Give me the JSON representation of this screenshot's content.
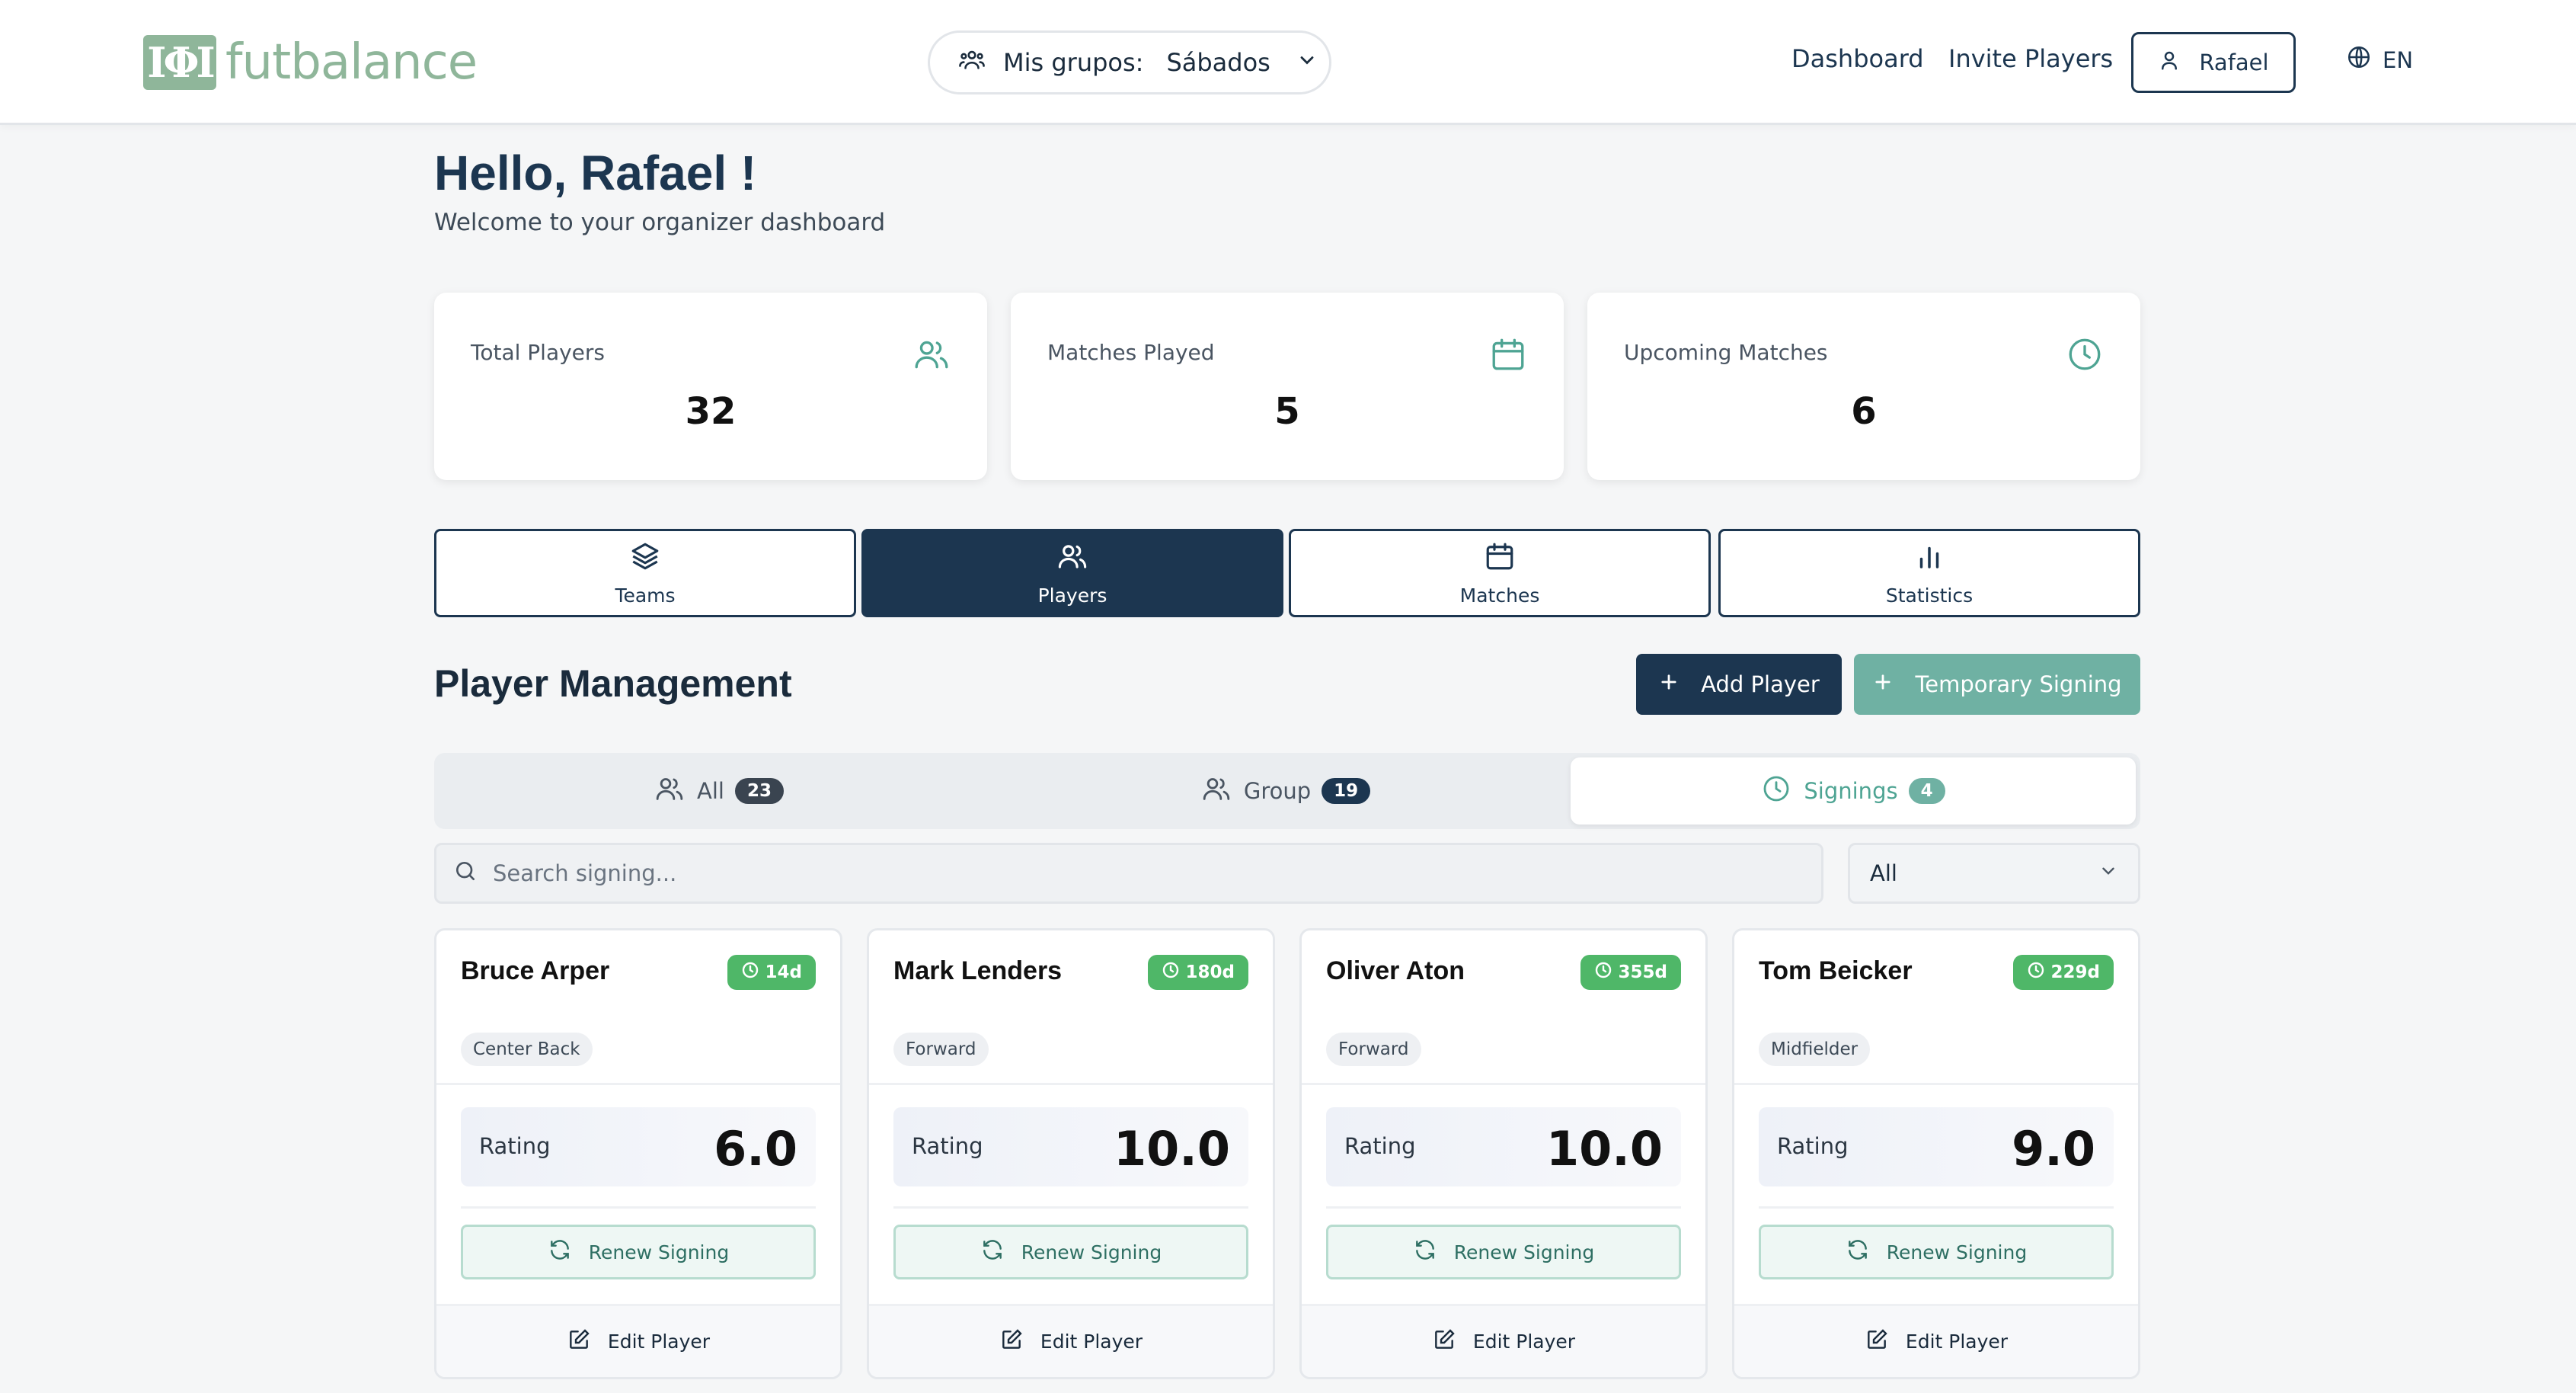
{
  "brand": {
    "name": "futbalance",
    "mark": "IΦI",
    "color": "#8fb69a"
  },
  "header": {
    "group_label": "Mis grupos:",
    "group_value": "Sábados",
    "nav": [
      "Dashboard",
      "Invite Players"
    ],
    "user": "Rafael",
    "lang": "EN"
  },
  "greeting": {
    "title": "Hello, Rafael !",
    "subtitle": "Welcome to your organizer dashboard"
  },
  "stats": [
    {
      "label": "Total Players",
      "value": "32",
      "icon": "users-icon"
    },
    {
      "label": "Matches Played",
      "value": "5",
      "icon": "calendar-icon"
    },
    {
      "label": "Upcoming Matches",
      "value": "6",
      "icon": "clock-icon"
    }
  ],
  "tabs": [
    {
      "label": "Teams",
      "icon": "layers-icon"
    },
    {
      "label": "Players",
      "icon": "users-icon",
      "active": true
    },
    {
      "label": "Matches",
      "icon": "calendar-icon"
    },
    {
      "label": "Statistics",
      "icon": "bar-chart-icon"
    }
  ],
  "management": {
    "title": "Player Management",
    "add_player": "Add Player",
    "temporary_signing": "Temporary Signing"
  },
  "filters": [
    {
      "label": "All",
      "count": "23"
    },
    {
      "label": "Group",
      "count": "19"
    },
    {
      "label": "Signings",
      "count": "4",
      "active": true
    }
  ],
  "search": {
    "placeholder": "Search signing..."
  },
  "position_filter": {
    "selected": "All"
  },
  "players": [
    {
      "name": "Bruce Arper",
      "days": "14d",
      "position": "Center Back",
      "rating_label": "Rating",
      "rating": "6.0",
      "renew": "Renew Signing",
      "edit": "Edit Player"
    },
    {
      "name": "Mark Lenders",
      "days": "180d",
      "position": "Forward",
      "rating_label": "Rating",
      "rating": "10.0",
      "renew": "Renew Signing",
      "edit": "Edit Player"
    },
    {
      "name": "Oliver Aton",
      "days": "355d",
      "position": "Forward",
      "rating_label": "Rating",
      "rating": "10.0",
      "renew": "Renew Signing",
      "edit": "Edit Player"
    },
    {
      "name": "Tom Beicker",
      "days": "229d",
      "position": "Midfielder",
      "rating_label": "Rating",
      "rating": "9.0",
      "renew": "Renew Signing",
      "edit": "Edit Player"
    }
  ],
  "colors": {
    "primary": "#1c3650",
    "accent": "#6fb1a3",
    "days_badge": "#4fb768"
  }
}
